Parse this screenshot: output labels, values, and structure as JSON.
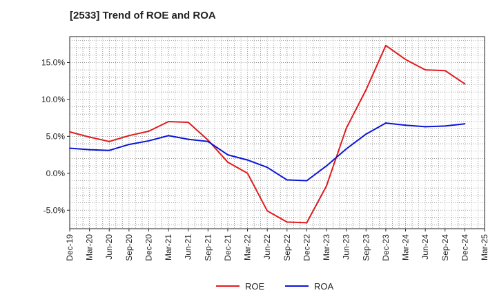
{
  "title": "[2533]  Trend of ROE and ROA",
  "chart_data": {
    "type": "line",
    "title": "[2533]  Trend of ROE and ROA",
    "xlabel": "",
    "ylabel": "",
    "categories": [
      "Dec-19",
      "Mar-20",
      "Jun-20",
      "Sep-20",
      "Dec-20",
      "Mar-21",
      "Jun-21",
      "Sep-21",
      "Dec-21",
      "Mar-22",
      "Jun-22",
      "Sep-22",
      "Dec-22",
      "Mar-23",
      "Jun-23",
      "Sep-23",
      "Dec-23",
      "Mar-24",
      "Jun-24",
      "Sep-24",
      "Dec-24",
      "Mar-25"
    ],
    "ylim": [
      -7.5,
      18.5
    ],
    "yticks": [
      -5.0,
      0.0,
      5.0,
      10.0,
      15.0
    ],
    "ytick_labels": [
      "-5.0%",
      "0.0%",
      "5.0%",
      "10.0%",
      "15.0%"
    ],
    "grid": true,
    "legend_position": "bottom",
    "series": [
      {
        "name": "ROE",
        "color": "#e31a1c",
        "values": [
          5.6,
          4.9,
          4.3,
          5.1,
          5.7,
          7.0,
          6.9,
          4.5,
          1.5,
          0.0,
          -5.1,
          -6.6,
          -6.7,
          -1.7,
          6.1,
          11.3,
          17.3,
          15.4,
          14.0,
          13.9,
          12.1,
          null
        ]
      },
      {
        "name": "ROA",
        "color": "#0a14d8",
        "values": [
          3.4,
          3.2,
          3.1,
          3.9,
          4.4,
          5.1,
          4.6,
          4.3,
          2.5,
          1.8,
          0.8,
          -0.9,
          -1.0,
          1.0,
          3.3,
          5.3,
          6.8,
          6.5,
          6.3,
          6.4,
          6.7,
          null
        ]
      }
    ]
  }
}
